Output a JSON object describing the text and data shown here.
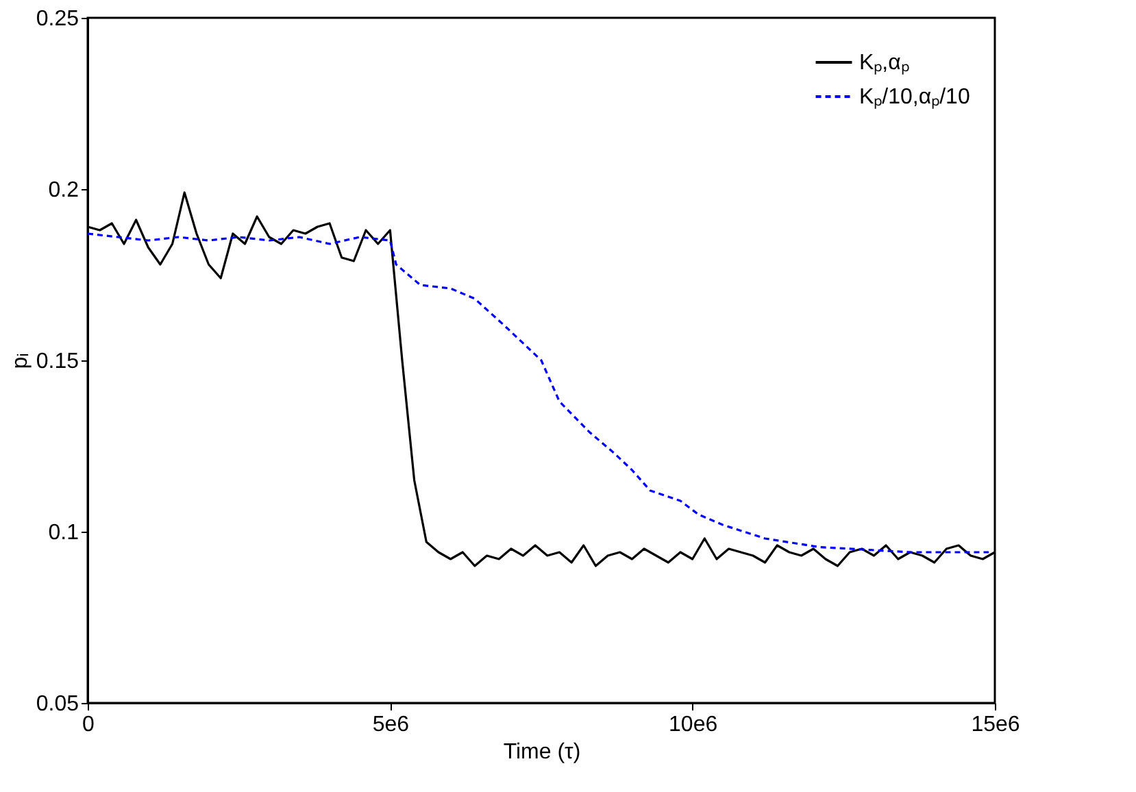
{
  "chart_data": {
    "type": "line",
    "xlabel": "Time (τ)",
    "ylabel": "pᵢ",
    "xlim": [
      0,
      15000000
    ],
    "xticks": [
      0,
      {
        "value": 5000000,
        "label": "5e6"
      },
      {
        "value": 10000000,
        "label": "10e6"
      },
      {
        "value": 15000000,
        "label": "15e6"
      }
    ],
    "ylim": [
      0.05,
      0.25
    ],
    "yticks": [
      0.05,
      0.1,
      0.15,
      0.2,
      0.25
    ],
    "grid": false,
    "legend": "top right",
    "marker": "none",
    "series": [
      {
        "name": "Kₚ,αₚ",
        "color": "#000000",
        "line_style": "solid",
        "x": [
          0,
          200000,
          400000,
          600000,
          800000,
          1000000,
          1200000,
          1400000,
          1600000,
          1800000,
          2000000,
          2200000,
          2400000,
          2600000,
          2800000,
          3000000,
          3200000,
          3400000,
          3600000,
          3800000,
          4000000,
          4200000,
          4400000,
          4600000,
          4800000,
          5000000,
          5200000,
          5400000,
          5600000,
          5800000,
          6000000,
          6200000,
          6400000,
          6600000,
          6800000,
          7000000,
          7200000,
          7400000,
          7600000,
          7800000,
          8000000,
          8200000,
          8400000,
          8600000,
          8800000,
          9000000,
          9200000,
          9400000,
          9600000,
          9800000,
          10000000,
          10200000,
          10400000,
          10600000,
          10800000,
          11000000,
          11200000,
          11400000,
          11600000,
          11800000,
          12000000,
          12200000,
          12400000,
          12600000,
          12800000,
          13000000,
          13200000,
          13400000,
          13600000,
          13800000,
          14000000,
          14200000,
          14400000,
          14600000,
          14800000,
          15000000
        ],
        "values": [
          0.189,
          0.188,
          0.19,
          0.184,
          0.191,
          0.183,
          0.178,
          0.184,
          0.199,
          0.187,
          0.178,
          0.174,
          0.187,
          0.184,
          0.192,
          0.186,
          0.184,
          0.188,
          0.187,
          0.189,
          0.19,
          0.18,
          0.179,
          0.188,
          0.184,
          0.188,
          0.15,
          0.115,
          0.097,
          0.094,
          0.092,
          0.094,
          0.09,
          0.093,
          0.092,
          0.095,
          0.093,
          0.096,
          0.093,
          0.094,
          0.091,
          0.096,
          0.09,
          0.093,
          0.094,
          0.092,
          0.095,
          0.093,
          0.091,
          0.094,
          0.092,
          0.098,
          0.092,
          0.095,
          0.094,
          0.093,
          0.091,
          0.096,
          0.094,
          0.093,
          0.095,
          0.092,
          0.09,
          0.094,
          0.095,
          0.093,
          0.096,
          0.092,
          0.094,
          0.093,
          0.091,
          0.095,
          0.096,
          0.093,
          0.092,
          0.094
        ]
      },
      {
        "name": "Kₚ/10,αₚ/10",
        "color": "#0000ff",
        "line_style": "dashed",
        "x": [
          0,
          500000,
          1000000,
          1500000,
          2000000,
          2500000,
          3000000,
          3500000,
          4000000,
          4500000,
          5000000,
          5100000,
          5500000,
          6000000,
          6400000,
          6900000,
          7500000,
          7800000,
          8300000,
          8700000,
          9000000,
          9300000,
          9800000,
          10100000,
          10500000,
          11200000,
          12100000,
          13600000,
          14900000
        ],
        "values": [
          0.187,
          0.186,
          0.185,
          0.186,
          0.185,
          0.186,
          0.185,
          0.186,
          0.184,
          0.186,
          0.185,
          0.178,
          0.172,
          0.171,
          0.168,
          0.16,
          0.15,
          0.138,
          0.129,
          0.123,
          0.118,
          0.112,
          0.109,
          0.105,
          0.102,
          0.098,
          0.0955,
          0.094,
          0.094
        ]
      }
    ]
  }
}
